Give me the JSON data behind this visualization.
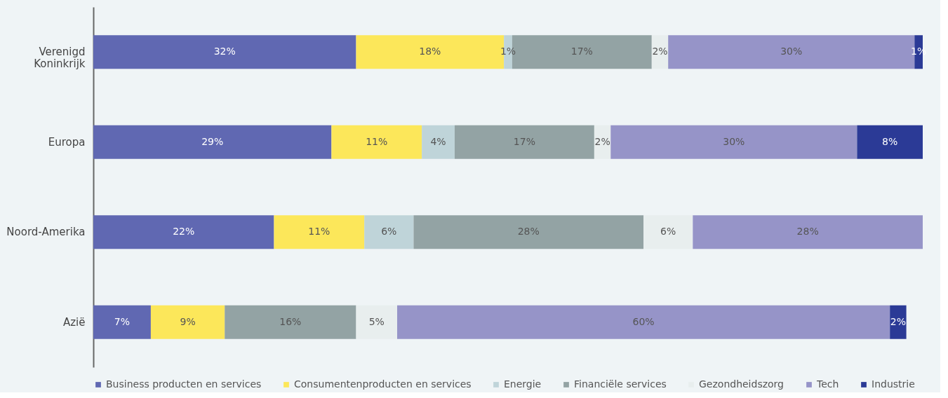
{
  "chart_data": {
    "type": "bar",
    "orientation": "horizontal",
    "stacked": true,
    "legend": "bottom",
    "categories": [
      "Verenigd Koninkrijk",
      "Europa",
      "Noord-Amerika",
      "Azië"
    ],
    "series": [
      {
        "name": "Business producten en services",
        "color": "#6068b2",
        "values": [
          32,
          29,
          22,
          7
        ],
        "value_labels": [
          "32%",
          "29%",
          "22%",
          "7%"
        ]
      },
      {
        "name": "Consumentenproducten en services",
        "color": "#fce75a",
        "values": [
          18,
          11,
          11,
          9
        ],
        "value_labels": [
          "18%",
          "11%",
          "11%",
          "9%"
        ]
      },
      {
        "name": "Energie",
        "color": "#bfd4d9",
        "values": [
          1,
          4,
          6,
          null
        ],
        "value_labels": [
          "1%",
          "4%",
          "6%",
          null
        ]
      },
      {
        "name": "Financiële services",
        "color": "#93a3a4",
        "values": [
          17,
          17,
          28,
          16
        ],
        "value_labels": [
          "17%",
          "17%",
          "28%",
          "16%"
        ]
      },
      {
        "name": "Gezondheidszorg",
        "color": "#e8eeee",
        "values": [
          2,
          2,
          6,
          5
        ],
        "value_labels": [
          "2%",
          "2%",
          "6%",
          "5%"
        ]
      },
      {
        "name": "Tech",
        "color": "#9694c8",
        "values": [
          30,
          30,
          28,
          60
        ],
        "value_labels": [
          "30%",
          "30%",
          "28%",
          "60%"
        ]
      },
      {
        "name": "Industrie",
        "color": "#2b3a96",
        "values": [
          1,
          8,
          null,
          2
        ],
        "value_labels": [
          "1%",
          "8%",
          null,
          "2%"
        ]
      }
    ]
  }
}
